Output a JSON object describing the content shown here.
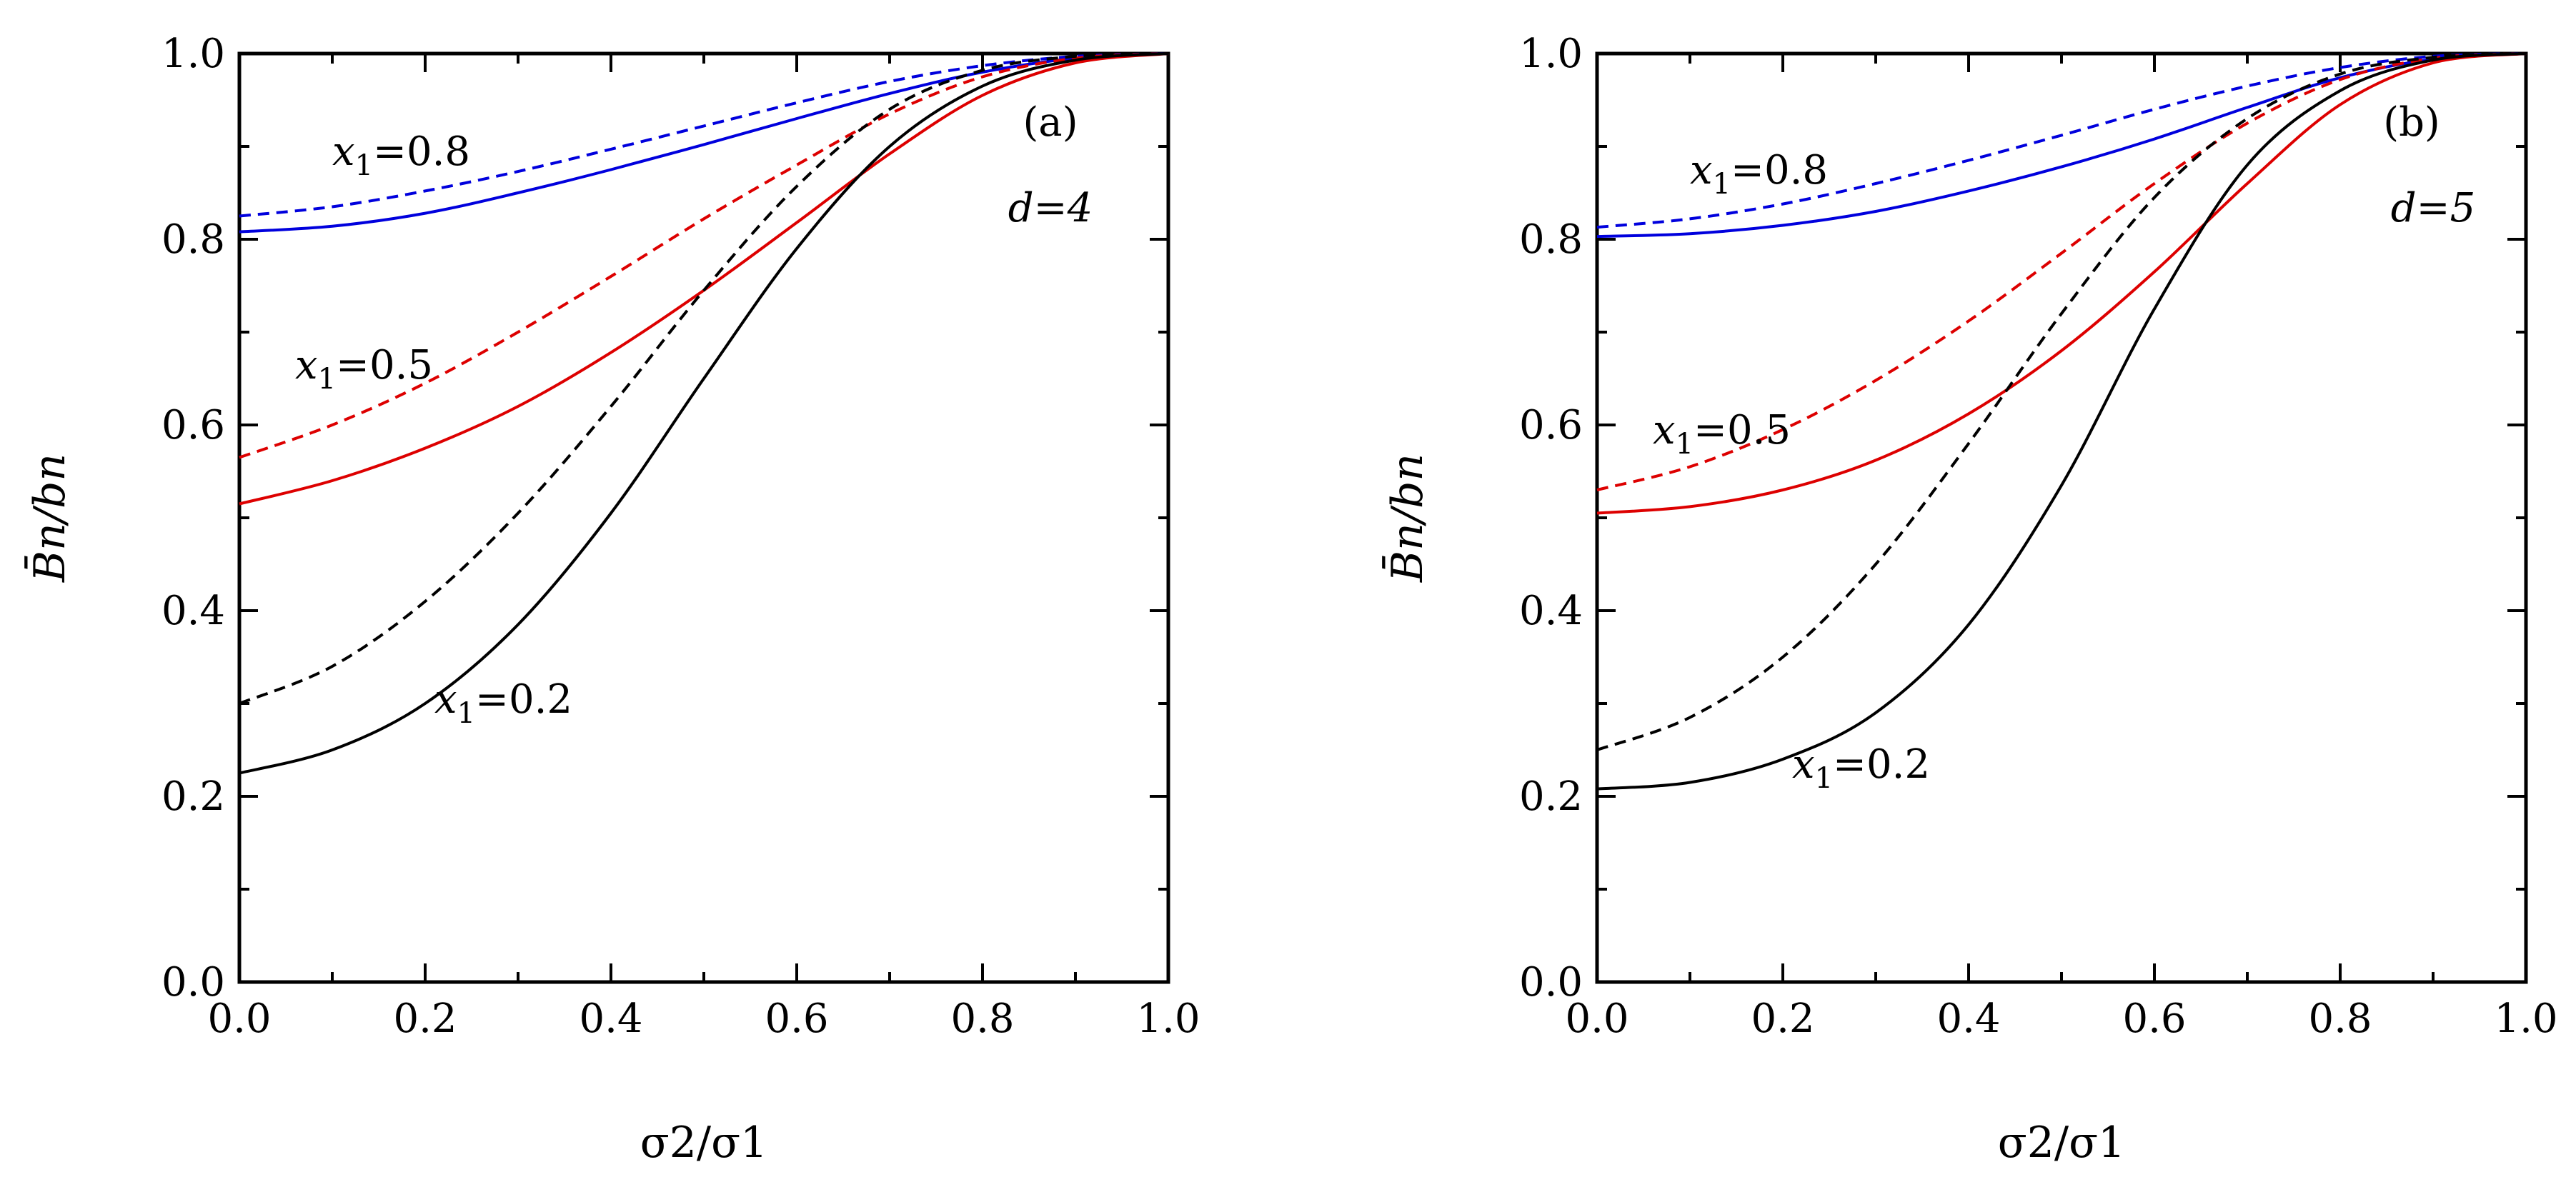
{
  "chart_data": [
    {
      "type": "line",
      "panel_label": "(a)",
      "param_label": "d=4",
      "xlabel": "σ2/σ1",
      "ylabel": "B̄n/bn",
      "xlim": [
        0,
        1
      ],
      "ylim": [
        0,
        1
      ],
      "x_ticks": [
        "0.0",
        "0.2",
        "0.4",
        "0.6",
        "0.8",
        "1.0"
      ],
      "y_ticks": [
        "0.0",
        "0.2",
        "0.4",
        "0.6",
        "0.8",
        "1.0"
      ],
      "annotations": [
        {
          "text": "x1=0.8",
          "x": 0.1,
          "y": 0.88
        },
        {
          "text": "x1=0.5",
          "x": 0.06,
          "y": 0.65
        },
        {
          "text": "x1=0.2",
          "x": 0.21,
          "y": 0.29
        }
      ],
      "series": [
        {
          "name": "x1=0.8 solid",
          "color": "#0000dd",
          "dash": "solid",
          "x": [
            0,
            0.1,
            0.2,
            0.3,
            0.4,
            0.5,
            0.6,
            0.7,
            0.8,
            0.9,
            1.0
          ],
          "y": [
            0.808,
            0.814,
            0.828,
            0.85,
            0.875,
            0.902,
            0.93,
            0.957,
            0.98,
            0.995,
            1.0
          ]
        },
        {
          "name": "x1=0.8 dashed",
          "color": "#0000dd",
          "dash": "dashed",
          "x": [
            0,
            0.1,
            0.2,
            0.3,
            0.4,
            0.5,
            0.6,
            0.7,
            0.8,
            0.9,
            1.0
          ],
          "y": [
            0.825,
            0.835,
            0.852,
            0.873,
            0.897,
            0.922,
            0.947,
            0.97,
            0.987,
            0.997,
            1.0
          ]
        },
        {
          "name": "x1=0.5 solid",
          "color": "#dd0000",
          "dash": "solid",
          "x": [
            0,
            0.1,
            0.2,
            0.3,
            0.4,
            0.5,
            0.6,
            0.7,
            0.8,
            0.9,
            1.0
          ],
          "y": [
            0.515,
            0.54,
            0.575,
            0.62,
            0.678,
            0.745,
            0.818,
            0.892,
            0.955,
            0.99,
            1.0
          ]
        },
        {
          "name": "x1=0.5 dashed",
          "color": "#dd0000",
          "dash": "dashed",
          "x": [
            0,
            0.1,
            0.2,
            0.3,
            0.4,
            0.5,
            0.6,
            0.7,
            0.8,
            0.9,
            1.0
          ],
          "y": [
            0.565,
            0.6,
            0.645,
            0.7,
            0.76,
            0.822,
            0.88,
            0.935,
            0.975,
            0.995,
            1.0
          ]
        },
        {
          "name": "x1=0.2 solid",
          "color": "#000000",
          "dash": "solid",
          "x": [
            0,
            0.1,
            0.2,
            0.3,
            0.4,
            0.5,
            0.6,
            0.7,
            0.8,
            0.9,
            1.0
          ],
          "y": [
            0.225,
            0.25,
            0.3,
            0.385,
            0.505,
            0.65,
            0.79,
            0.9,
            0.965,
            0.993,
            1.0
          ]
        },
        {
          "name": "x1=0.2 dashed",
          "color": "#000000",
          "dash": "dashed",
          "x": [
            0,
            0.1,
            0.2,
            0.3,
            0.4,
            0.5,
            0.6,
            0.7,
            0.8,
            0.9,
            1.0
          ],
          "y": [
            0.3,
            0.34,
            0.41,
            0.505,
            0.62,
            0.745,
            0.857,
            0.94,
            0.982,
            0.997,
            1.0
          ]
        }
      ]
    },
    {
      "type": "line",
      "panel_label": "(b)",
      "param_label": "d=5",
      "xlabel": "σ2/σ1",
      "ylabel": "B̄n/bn",
      "xlim": [
        0,
        1
      ],
      "ylim": [
        0,
        1
      ],
      "x_ticks": [
        "0.0",
        "0.2",
        "0.4",
        "0.6",
        "0.8",
        "1.0"
      ],
      "y_ticks": [
        "0.0",
        "0.2",
        "0.4",
        "0.6",
        "0.8",
        "1.0"
      ],
      "annotations": [
        {
          "text": "x1=0.8",
          "x": 0.1,
          "y": 0.86
        },
        {
          "text": "x1=0.5",
          "x": 0.06,
          "y": 0.58
        },
        {
          "text": "x1=0.2",
          "x": 0.21,
          "y": 0.22
        }
      ],
      "series": [
        {
          "name": "x1=0.8 solid",
          "color": "#0000dd",
          "dash": "solid",
          "x": [
            0,
            0.1,
            0.2,
            0.3,
            0.4,
            0.5,
            0.6,
            0.7,
            0.8,
            0.9,
            1.0
          ],
          "y": [
            0.803,
            0.806,
            0.815,
            0.83,
            0.852,
            0.878,
            0.908,
            0.942,
            0.974,
            0.994,
            1.0
          ]
        },
        {
          "name": "x1=0.8 dashed",
          "color": "#0000dd",
          "dash": "dashed",
          "x": [
            0,
            0.1,
            0.2,
            0.3,
            0.4,
            0.5,
            0.6,
            0.7,
            0.8,
            0.9,
            1.0
          ],
          "y": [
            0.813,
            0.822,
            0.838,
            0.86,
            0.885,
            0.912,
            0.94,
            0.965,
            0.985,
            0.997,
            1.0
          ]
        },
        {
          "name": "x1=0.5 solid",
          "color": "#dd0000",
          "dash": "solid",
          "x": [
            0,
            0.1,
            0.2,
            0.3,
            0.4,
            0.5,
            0.6,
            0.7,
            0.8,
            0.9,
            1.0
          ],
          "y": [
            0.505,
            0.512,
            0.53,
            0.562,
            0.612,
            0.68,
            0.765,
            0.86,
            0.945,
            0.99,
            1.0
          ]
        },
        {
          "name": "x1=0.5 dashed",
          "color": "#dd0000",
          "dash": "dashed",
          "x": [
            0,
            0.1,
            0.2,
            0.3,
            0.4,
            0.5,
            0.6,
            0.7,
            0.8,
            0.9,
            1.0
          ],
          "y": [
            0.53,
            0.555,
            0.595,
            0.648,
            0.712,
            0.785,
            0.86,
            0.925,
            0.972,
            0.995,
            1.0
          ]
        },
        {
          "name": "x1=0.2 solid",
          "color": "#000000",
          "dash": "solid",
          "x": [
            0,
            0.1,
            0.2,
            0.3,
            0.4,
            0.5,
            0.6,
            0.7,
            0.8,
            0.9,
            1.0
          ],
          "y": [
            0.208,
            0.215,
            0.24,
            0.29,
            0.385,
            0.535,
            0.725,
            0.88,
            0.96,
            0.993,
            1.0
          ]
        },
        {
          "name": "x1=0.2 dashed",
          "color": "#000000",
          "dash": "dashed",
          "x": [
            0,
            0.1,
            0.2,
            0.3,
            0.4,
            0.5,
            0.6,
            0.7,
            0.8,
            0.9,
            1.0
          ],
          "y": [
            0.25,
            0.285,
            0.35,
            0.45,
            0.58,
            0.72,
            0.845,
            0.93,
            0.978,
            0.996,
            1.0
          ]
        }
      ]
    }
  ]
}
